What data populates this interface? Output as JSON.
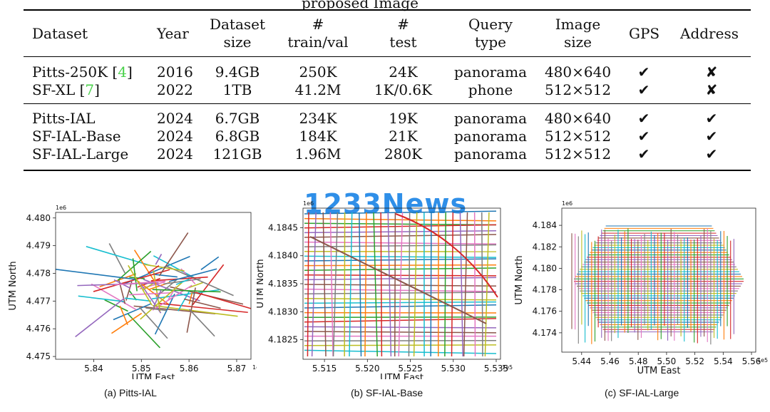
{
  "table": {
    "title_partial": "proposed Image",
    "headers": {
      "dataset": "Dataset",
      "year": "Year",
      "dataset_size_1": "Dataset",
      "dataset_size_2": "size",
      "train_1": "#",
      "train_2": "train/val",
      "test_1": "#",
      "test_2": "test",
      "query_1": "Query",
      "query_2": "type",
      "image_1": "Image",
      "image_2": "size",
      "gps": "GPS",
      "address": "Address"
    },
    "existing": [
      {
        "name": "Pitts-250K [",
        "ref": "4",
        "close": "]",
        "year": "2016",
        "size": "9.4GB",
        "train": "250K",
        "test": "24K",
        "query": "panorama",
        "image": "480×640",
        "gps": "✔",
        "address": "✘"
      },
      {
        "name": "SF-XL [",
        "ref": "7",
        "close": "]",
        "year": "2022",
        "size": "1TB",
        "train": "41.2M",
        "test": "1K/0.6K",
        "query": "phone",
        "image": "512×512",
        "gps": "✔",
        "address": "✘"
      }
    ],
    "proposed": [
      {
        "name": "Pitts-IAL",
        "year": "2024",
        "size": "6.7GB",
        "train": "234K",
        "test": "19K",
        "query": "panorama",
        "image": "480×640",
        "gps": "✔",
        "address": "✔"
      },
      {
        "name": "SF-IAL-Base",
        "year": "2024",
        "size": "6.8GB",
        "train": "184K",
        "test": "21K",
        "query": "panorama",
        "image": "512×512",
        "gps": "✔",
        "address": "✔"
      },
      {
        "name": "SF-IAL-Large",
        "year": "2024",
        "size": "121GB",
        "train": "1.96M",
        "test": "280K",
        "query": "panorama",
        "image": "512×512",
        "gps": "✔",
        "address": "✔"
      }
    ]
  },
  "watermark": "1233News",
  "chart_data": [
    {
      "type": "line",
      "caption": "(a) Pitts-IAL",
      "xlabel": "UTM East",
      "ylabel": "UTM North",
      "x_exponent": "1e5",
      "y_exponent": "1e6",
      "xticks": [
        "5.84",
        "5.85",
        "5.86",
        "5.87"
      ],
      "yticks": [
        "4.475",
        "4.476",
        "4.477",
        "4.478",
        "4.479",
        "4.480"
      ],
      "xlim": [
        5.832,
        5.873
      ],
      "ylim": [
        4.4749,
        4.4802
      ],
      "series": []
    },
    {
      "type": "line",
      "caption": "(b) SF-IAL-Base",
      "xlabel": "UTM East",
      "ylabel": "UTM North",
      "x_exponent": "1e5",
      "y_exponent": "1e6",
      "xticks": [
        "5.515",
        "5.520",
        "5.525",
        "5.530",
        "5.535"
      ],
      "yticks": [
        "4.1825",
        "4.1830",
        "4.1835",
        "4.1840",
        "4.1845"
      ],
      "xlim": [
        5.5125,
        5.5355
      ],
      "ylim": [
        4.18215,
        4.18485
      ],
      "series": []
    },
    {
      "type": "line",
      "caption": "(c) SF-IAL-Large",
      "xlabel": "UTM East",
      "ylabel": "UTM North",
      "x_exponent": "1e5",
      "y_exponent": "1e6",
      "xticks": [
        "5.44",
        "5.46",
        "5.48",
        "5.50",
        "5.52",
        "5.54",
        "5.56"
      ],
      "yticks": [
        "4.174",
        "4.176",
        "4.178",
        "4.180",
        "4.182",
        "4.184"
      ],
      "xlim": [
        5.426,
        5.563
      ],
      "ylim": [
        4.1722,
        4.1856
      ],
      "series": []
    }
  ],
  "colors": {
    "rule": "#000000",
    "ref_link": "#49d14a",
    "watermark": "#2f8fe8"
  }
}
